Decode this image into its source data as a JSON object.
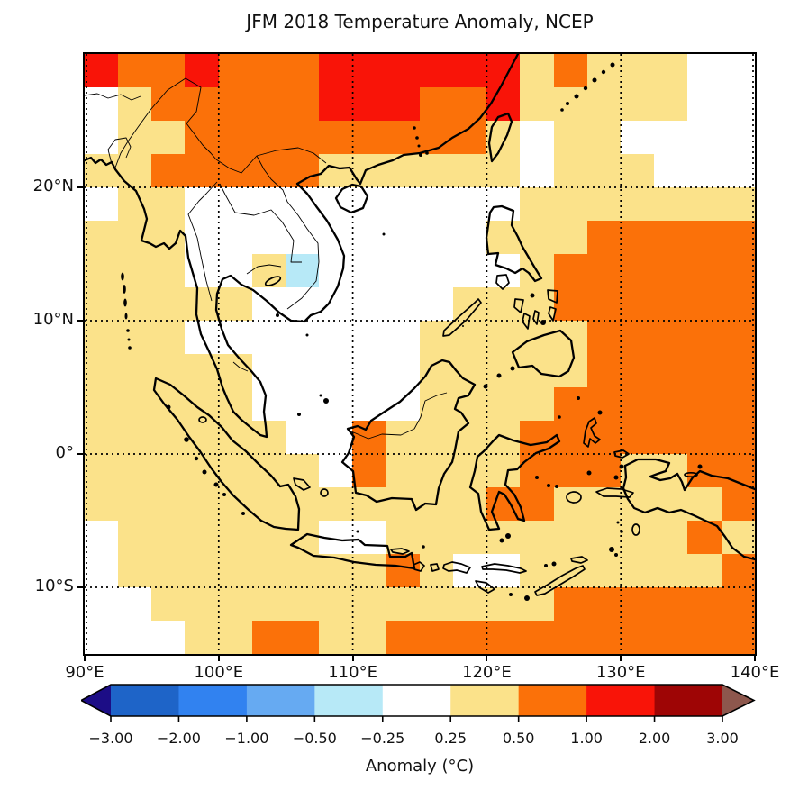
{
  "figure": {
    "title": "JFM 2018 Temperature Anomaly, NCEP"
  },
  "chart_data": {
    "type": "heatmap",
    "title": "JFM 2018 Temperature Anomaly, NCEP",
    "subtitle": "",
    "region": "Southeast Asia / Maritime Continent map with coastlines",
    "x_axis": {
      "ticks": [
        "90°E",
        "100°E",
        "110°E",
        "120°E",
        "130°E",
        "140°E"
      ],
      "tick_values": [
        90,
        100,
        110,
        120,
        130,
        140
      ],
      "range": [
        90,
        140
      ]
    },
    "y_axis": {
      "ticks": [
        "20°N",
        "10°N",
        "0°",
        "10°S"
      ],
      "tick_values": [
        20,
        10,
        0,
        -10
      ],
      "range": [
        -15,
        30
      ]
    },
    "gridlines": {
      "style": "dotted",
      "lon": [
        90,
        100,
        110,
        120,
        130,
        140
      ],
      "lat": [
        20,
        10,
        0,
        -10
      ]
    },
    "grid": {
      "description": "2.5-degree anomaly cells, 20 columns (90E-140E) x 18 rows (30N-15S), letter = anomaly class",
      "ncols": 20,
      "nrows": 18,
      "lon_start": 90,
      "lon_step": 2.5,
      "lat_start": 30,
      "lat_step": -2.5,
      "classes": {
        "W": {
          "range_c": "-0.25 to 0.25",
          "color": "#ffffff"
        },
        "C": {
          "range_c": "-0.50 to -0.25",
          "color": "#b7e9f7"
        },
        "K": {
          "range_c": "0.25 to 0.50",
          "color": "#fbe28a"
        },
        "O": {
          "range_c": "0.50 to 1.00",
          "color": "#fb7109"
        },
        "R": {
          "range_c": "1.00 to 2.00",
          "color": "#f91408"
        }
      },
      "rows": [
        "ROOROOORRRRRRKOKKKWW",
        "WKOOOOORRROORKKKKKWW",
        "WKKOOOOOOOOOKWKKWWWW",
        "KKOOOOOKKKKKKWKKKWWW",
        "WKKWWWWWWWWWWKKKKKKK",
        "KKKWWWWWWWWWKKKOOOOO",
        "KKKWWKCWWWWWWKOOOOOO",
        "KKKKKWWWWWWKKKOOOOOO",
        "KKKWWWWWWWKKKKKOOOOO",
        "KKKKKWWWWWKKKKKOOOOO",
        "KKKKKWWWWWKKKKOOOOOO",
        "KKKKKKWWOKKKKOOOOOOO",
        "KKKKKKKWOKKKKOOOKKOO",
        "KKKKKKKKKKKKOOKKKKKO",
        "WKKKKKKWWKKKKKKKKKOK",
        "WKKKKKKKKOKWWKKKKKKO",
        "WWKKKKKKKKKKKKOOOOOO",
        "WWWKKOOKKOOOOOOOOOOO"
      ]
    },
    "colorbar": {
      "label": "Anomaly (°C)",
      "orientation": "horizontal",
      "tick_labels": [
        "−3.00",
        "−2.00",
        "−1.00",
        "−0.50",
        "−0.25",
        "0.25",
        "0.50",
        "1.00",
        "2.00",
        "3.00"
      ],
      "tick_values": [
        -3,
        -2,
        -1,
        -0.5,
        -0.25,
        0.25,
        0.5,
        1,
        2,
        3
      ],
      "segment_colors": [
        "#1e64c8",
        "#3182f0",
        "#66aaf2",
        "#b7e9f7",
        "#ffffff",
        "#fbe28a",
        "#fb7109",
        "#f91408",
        "#9e0505"
      ],
      "under_arrow_color": "#1c0d86",
      "over_arrow_color": "#8d574d",
      "outline_color": "#000000"
    }
  }
}
